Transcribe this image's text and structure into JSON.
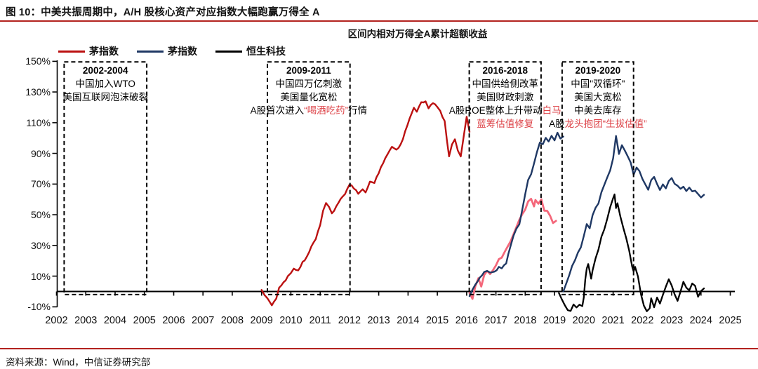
{
  "figure": {
    "title": "图 10：中美共振周期中，A/H 股核心资产对应指数大幅跑赢万得全 A",
    "source": "资料来源：Wind，中信证券研究部"
  },
  "legend": [
    {
      "label": "茅指数",
      "color": "#bb1010"
    },
    {
      "label": "茅指数",
      "color": "#1f3864"
    },
    {
      "label": "恒生科技",
      "color": "#000000"
    }
  ],
  "annotations": [
    {
      "year_range": [
        2002.26,
        2005.08
      ],
      "lines": [
        [
          {
            "t": "2002-2004",
            "y": 1
          }
        ],
        [
          {
            "t": "中国加入WTO"
          }
        ],
        [
          {
            "t": "美国互联网泡沫破裂"
          }
        ]
      ]
    },
    {
      "year_range": [
        2009.2,
        2012.02
      ],
      "lines": [
        [
          {
            "t": "2009-2011",
            "y": 1
          }
        ],
        [
          {
            "t": "中国四万亿刺激"
          }
        ],
        [
          {
            "t": "美国量化宽松"
          }
        ],
        [
          {
            "t": "A股首次进入"
          },
          {
            "t": "“喝酒吃药”",
            "r": 1
          },
          {
            "t": "行情"
          }
        ]
      ]
    },
    {
      "year_range": [
        2016.09,
        2018.54
      ],
      "lines": [
        [
          {
            "t": "2016-2018",
            "y": 1
          }
        ],
        [
          {
            "t": "中国供给侧改革"
          }
        ],
        [
          {
            "t": "美国财政刺激"
          }
        ],
        [
          {
            "t": "A股ROE整体上升带动"
          },
          {
            "t": "白马",
            "r": 1
          }
        ],
        [
          {
            "t": "蓝筹估值修复",
            "r": 1
          }
        ]
      ]
    },
    {
      "year_range": [
        2019.26,
        2021.7
      ],
      "lines": [
        [
          {
            "t": "2019-2020",
            "y": 1
          }
        ],
        [
          {
            "t": "中国\"双循环\""
          }
        ],
        [
          {
            "t": "美国大宽松"
          }
        ],
        [
          {
            "t": "中美去库存"
          }
        ],
        [
          {
            "t": "A股"
          },
          {
            "t": "龙头抱团“生拔估值”",
            "r": 1
          }
        ]
      ]
    }
  ],
  "chart_data": {
    "type": "line",
    "title": "区间内相对万得全A累计超额收益",
    "x_axis": {
      "unit": "year",
      "tick_values": [
        2002,
        2003,
        2004,
        2005,
        2006,
        2007,
        2008,
        2009,
        2010,
        2011,
        2012,
        2013,
        2014,
        2015,
        2016,
        2017,
        2018,
        2019,
        2020,
        2021,
        2022,
        2023,
        2024,
        2025
      ]
    },
    "y_axis": {
      "unit": "%",
      "tick_values": [
        150,
        130,
        110,
        90,
        70,
        50,
        30,
        10,
        -10
      ],
      "tick_labels": [
        "150%",
        "130%",
        "110%",
        "90%",
        "70%",
        "50%",
        "30%",
        "10%",
        "-10%"
      ]
    },
    "grid": false,
    "legend_position": "top-left",
    "event_box_pct_range": [
      -2,
      149.6
    ],
    "series": [
      {
        "name": "茅指数",
        "interval": "2009-2016",
        "color": "#bb1010",
        "width": 2.4,
        "points": [
          [
            2009,
            1
          ],
          [
            2009.1,
            -2
          ],
          [
            2009.2,
            -5
          ],
          [
            2009.35,
            -9
          ],
          [
            2009.5,
            -4
          ],
          [
            2009.6,
            2
          ],
          [
            2009.75,
            6
          ],
          [
            2009.9,
            10
          ],
          [
            2010,
            12
          ],
          [
            2010.1,
            15
          ],
          [
            2010.25,
            13
          ],
          [
            2010.4,
            19
          ],
          [
            2010.55,
            23
          ],
          [
            2010.7,
            29
          ],
          [
            2010.85,
            34
          ],
          [
            2011,
            44
          ],
          [
            2011.1,
            52
          ],
          [
            2011.2,
            58
          ],
          [
            2011.3,
            55
          ],
          [
            2011.4,
            51
          ],
          [
            2011.55,
            55
          ],
          [
            2011.7,
            60
          ],
          [
            2011.85,
            64
          ],
          [
            2012,
            70
          ],
          [
            2012.15,
            67
          ],
          [
            2012.3,
            64
          ],
          [
            2012.45,
            67
          ],
          [
            2012.55,
            64
          ],
          [
            2012.7,
            72
          ],
          [
            2012.85,
            71
          ],
          [
            2013,
            77
          ],
          [
            2013.15,
            84
          ],
          [
            2013.3,
            90
          ],
          [
            2013.45,
            94
          ],
          [
            2013.6,
            92
          ],
          [
            2013.75,
            96
          ],
          [
            2013.9,
            104
          ],
          [
            2014.05,
            112
          ],
          [
            2014.2,
            120
          ],
          [
            2014.3,
            117
          ],
          [
            2014.45,
            123
          ],
          [
            2014.6,
            124
          ],
          [
            2014.7,
            119
          ],
          [
            2014.85,
            123
          ],
          [
            2015,
            121
          ],
          [
            2015.1,
            117
          ],
          [
            2015.25,
            111
          ],
          [
            2015.4,
            88
          ],
          [
            2015.5,
            96
          ],
          [
            2015.6,
            99
          ],
          [
            2015.7,
            92
          ],
          [
            2015.8,
            88
          ],
          [
            2015.9,
            101
          ],
          [
            2016,
            114
          ],
          [
            2016.1,
            104
          ]
        ]
      },
      {
        "name": "茅指数",
        "interval": "2016-2019",
        "color": "#f4677a",
        "width": 2.8,
        "points": [
          [
            2016.1,
            -1
          ],
          [
            2016.2,
            -5
          ],
          [
            2016.3,
            4
          ],
          [
            2016.4,
            8
          ],
          [
            2016.5,
            4
          ],
          [
            2016.6,
            10
          ],
          [
            2016.7,
            14
          ],
          [
            2016.8,
            11
          ],
          [
            2016.9,
            14
          ],
          [
            2017,
            17
          ],
          [
            2017.1,
            21
          ],
          [
            2017.2,
            22
          ],
          [
            2017.3,
            26
          ],
          [
            2017.4,
            29
          ],
          [
            2017.5,
            33
          ],
          [
            2017.6,
            37
          ],
          [
            2017.7,
            42
          ],
          [
            2017.8,
            47
          ],
          [
            2017.9,
            50
          ],
          [
            2018,
            54
          ],
          [
            2018.1,
            58
          ],
          [
            2018.2,
            61
          ],
          [
            2018.3,
            55
          ],
          [
            2018.35,
            60
          ],
          [
            2018.45,
            57
          ],
          [
            2018.55,
            60
          ],
          [
            2018.65,
            53
          ],
          [
            2018.75,
            52
          ],
          [
            2018.85,
            50
          ],
          [
            2018.95,
            44
          ],
          [
            2019.05,
            46
          ]
        ]
      },
      {
        "name": "茅指数",
        "interval": "2016-2019",
        "color": "#1f3864",
        "width": 2.4,
        "points": [
          [
            2016.1,
            -3
          ],
          [
            2016.2,
            1
          ],
          [
            2016.3,
            5
          ],
          [
            2016.45,
            9
          ],
          [
            2016.6,
            12
          ],
          [
            2016.7,
            14
          ],
          [
            2016.8,
            12
          ],
          [
            2016.95,
            13
          ],
          [
            2017.1,
            16
          ],
          [
            2017.2,
            15
          ],
          [
            2017.35,
            19
          ],
          [
            2017.5,
            30
          ],
          [
            2017.6,
            36
          ],
          [
            2017.7,
            41
          ],
          [
            2017.8,
            44
          ],
          [
            2017.9,
            53
          ],
          [
            2018,
            64
          ],
          [
            2018.1,
            72
          ],
          [
            2018.2,
            77
          ],
          [
            2018.3,
            83
          ],
          [
            2018.4,
            91
          ],
          [
            2018.5,
            97
          ],
          [
            2018.6,
            96
          ],
          [
            2018.7,
            100
          ],
          [
            2018.8,
            98
          ],
          [
            2018.9,
            101
          ],
          [
            2019,
            99
          ],
          [
            2019.1,
            103
          ],
          [
            2019.2,
            100
          ],
          [
            2019.3,
            101
          ]
        ]
      },
      {
        "name": "茅指数",
        "interval": "2019-2024",
        "color": "#1f3864",
        "width": 2.4,
        "points": [
          [
            2019.3,
            0
          ],
          [
            2019.4,
            5
          ],
          [
            2019.5,
            11
          ],
          [
            2019.6,
            16
          ],
          [
            2019.7,
            21
          ],
          [
            2019.8,
            25
          ],
          [
            2019.9,
            29
          ],
          [
            2020,
            36
          ],
          [
            2020.1,
            44
          ],
          [
            2020.2,
            41
          ],
          [
            2020.3,
            50
          ],
          [
            2020.4,
            54
          ],
          [
            2020.5,
            58
          ],
          [
            2020.6,
            64
          ],
          [
            2020.7,
            70
          ],
          [
            2020.8,
            74
          ],
          [
            2020.9,
            79
          ],
          [
            2021,
            87
          ],
          [
            2021.1,
            101
          ],
          [
            2021.15,
            96
          ],
          [
            2021.2,
            90
          ],
          [
            2021.3,
            95
          ],
          [
            2021.4,
            92
          ],
          [
            2021.5,
            88
          ],
          [
            2021.6,
            84
          ],
          [
            2021.7,
            76
          ],
          [
            2021.8,
            81
          ],
          [
            2021.9,
            78
          ],
          [
            2022,
            74
          ],
          [
            2022.1,
            69
          ],
          [
            2022.2,
            67
          ],
          [
            2022.3,
            72
          ],
          [
            2022.4,
            75
          ],
          [
            2022.5,
            70
          ],
          [
            2022.6,
            66
          ],
          [
            2022.7,
            70
          ],
          [
            2022.8,
            67
          ],
          [
            2022.9,
            72
          ],
          [
            2023,
            74
          ],
          [
            2023.1,
            70
          ],
          [
            2023.2,
            69
          ],
          [
            2023.3,
            67
          ],
          [
            2023.4,
            68
          ],
          [
            2023.5,
            66
          ],
          [
            2023.6,
            67
          ],
          [
            2023.7,
            66
          ],
          [
            2023.8,
            65
          ],
          [
            2023.9,
            64
          ],
          [
            2024,
            61
          ],
          [
            2024.1,
            63
          ]
        ]
      },
      {
        "name": "恒生科技",
        "interval": "2019-2024",
        "color": "#000000",
        "width": 2.3,
        "points": [
          [
            2019.15,
            -1
          ],
          [
            2019.25,
            -5
          ],
          [
            2019.35,
            -9
          ],
          [
            2019.45,
            -12
          ],
          [
            2019.55,
            -13
          ],
          [
            2019.65,
            -8
          ],
          [
            2019.75,
            -11
          ],
          [
            2019.85,
            -8
          ],
          [
            2019.95,
            -10
          ],
          [
            2020,
            -4
          ],
          [
            2020.05,
            8
          ],
          [
            2020.1,
            15
          ],
          [
            2020.15,
            18
          ],
          [
            2020.25,
            8
          ],
          [
            2020.3,
            14
          ],
          [
            2020.4,
            21
          ],
          [
            2020.5,
            28
          ],
          [
            2020.6,
            35
          ],
          [
            2020.7,
            41
          ],
          [
            2020.8,
            47
          ],
          [
            2020.9,
            55
          ],
          [
            2021,
            61
          ],
          [
            2021.05,
            63
          ],
          [
            2021.1,
            54
          ],
          [
            2021.15,
            58
          ],
          [
            2021.25,
            48
          ],
          [
            2021.35,
            42
          ],
          [
            2021.45,
            34
          ],
          [
            2021.55,
            27
          ],
          [
            2021.65,
            16
          ],
          [
            2021.7,
            13
          ],
          [
            2021.75,
            16
          ],
          [
            2021.85,
            10
          ],
          [
            2021.95,
            -2
          ],
          [
            2022.05,
            -9
          ],
          [
            2022.15,
            -13
          ],
          [
            2022.25,
            -11
          ],
          [
            2022.3,
            -5
          ],
          [
            2022.4,
            -10
          ],
          [
            2022.5,
            -4
          ],
          [
            2022.6,
            -8
          ],
          [
            2022.7,
            -2
          ],
          [
            2022.8,
            3
          ],
          [
            2022.9,
            8
          ],
          [
            2023,
            4
          ],
          [
            2023.1,
            -2
          ],
          [
            2023.2,
            -6
          ],
          [
            2023.3,
            0
          ],
          [
            2023.4,
            6
          ],
          [
            2023.5,
            3
          ],
          [
            2023.6,
            0
          ],
          [
            2023.7,
            6
          ],
          [
            2023.8,
            3
          ],
          [
            2023.9,
            -3
          ],
          [
            2024,
            0
          ],
          [
            2024.1,
            2
          ]
        ]
      }
    ]
  }
}
